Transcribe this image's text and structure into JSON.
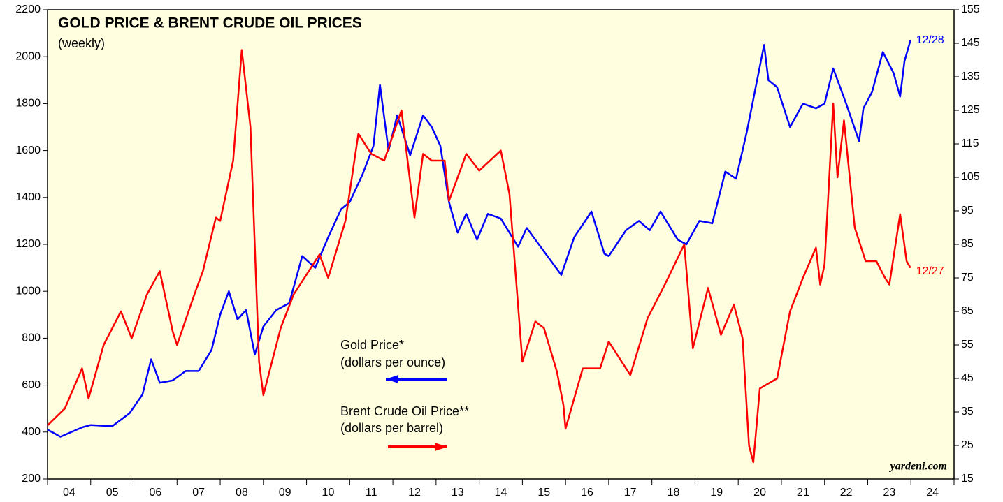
{
  "chart_data": {
    "type": "line",
    "title": "GOLD PRICE & BRENT CRUDE OIL PRICES",
    "subtitle": "(weekly)",
    "source": "yardeni.com",
    "xlim": [
      2004,
      2025
    ],
    "xticks": [
      {
        "value": 2004.5,
        "label": "04"
      },
      {
        "value": 2005.5,
        "label": "05"
      },
      {
        "value": 2006.5,
        "label": "06"
      },
      {
        "value": 2007.5,
        "label": "07"
      },
      {
        "value": 2008.5,
        "label": "08"
      },
      {
        "value": 2009.5,
        "label": "09"
      },
      {
        "value": 2010.5,
        "label": "10"
      },
      {
        "value": 2011.5,
        "label": "11"
      },
      {
        "value": 2012.5,
        "label": "12"
      },
      {
        "value": 2013.5,
        "label": "13"
      },
      {
        "value": 2014.5,
        "label": "14"
      },
      {
        "value": 2015.5,
        "label": "15"
      },
      {
        "value": 2016.5,
        "label": "16"
      },
      {
        "value": 2017.5,
        "label": "17"
      },
      {
        "value": 2018.5,
        "label": "18"
      },
      {
        "value": 2019.5,
        "label": "19"
      },
      {
        "value": 2020.5,
        "label": "20"
      },
      {
        "value": 2021.5,
        "label": "21"
      },
      {
        "value": 2022.5,
        "label": "22"
      },
      {
        "value": 2023.5,
        "label": "23"
      },
      {
        "value": 2024.5,
        "label": "24"
      }
    ],
    "xminor": [
      2004,
      2005,
      2006,
      2007,
      2008,
      2009,
      2010,
      2011,
      2012,
      2013,
      2014,
      2015,
      2016,
      2017,
      2018,
      2019,
      2020,
      2021,
      2022,
      2023,
      2024,
      2025
    ],
    "ylim": [
      200,
      2200
    ],
    "yticks": [
      200,
      400,
      600,
      800,
      1000,
      1200,
      1400,
      1600,
      1800,
      2000,
      2200
    ],
    "y2lim": [
      15,
      155
    ],
    "y2ticks": [
      15,
      25,
      35,
      45,
      55,
      65,
      75,
      85,
      95,
      105,
      115,
      125,
      135,
      145,
      155
    ],
    "series": [
      {
        "name": "Gold Price*",
        "unit": "(dollars per ounce)",
        "color": "#0000ff",
        "end_label": "12/28",
        "x": [
          2004.0,
          2004.3,
          2004.8,
          2005.0,
          2005.5,
          2005.9,
          2006.2,
          2006.4,
          2006.6,
          2006.9,
          2007.2,
          2007.5,
          2007.8,
          2008.0,
          2008.2,
          2008.4,
          2008.6,
          2008.8,
          2009.0,
          2009.3,
          2009.6,
          2009.9,
          2010.2,
          2010.5,
          2010.8,
          2011.0,
          2011.3,
          2011.55,
          2011.7,
          2011.9,
          2012.1,
          2012.4,
          2012.7,
          2012.9,
          2013.1,
          2013.3,
          2013.5,
          2013.7,
          2013.95,
          2014.2,
          2014.5,
          2014.9,
          2015.1,
          2015.5,
          2015.9,
          2016.2,
          2016.6,
          2016.9,
          2017.0,
          2017.4,
          2017.7,
          2017.95,
          2018.2,
          2018.6,
          2018.8,
          2019.1,
          2019.4,
          2019.7,
          2019.95,
          2020.2,
          2020.6,
          2020.7,
          2020.9,
          2021.2,
          2021.5,
          2021.8,
          2022.0,
          2022.2,
          2022.5,
          2022.8,
          2022.9,
          2023.1,
          2023.35,
          2023.6,
          2023.75,
          2023.85,
          2023.99
        ],
        "values": [
          410,
          380,
          420,
          430,
          425,
          480,
          560,
          710,
          610,
          620,
          660,
          660,
          750,
          900,
          1000,
          880,
          920,
          730,
          850,
          920,
          950,
          1150,
          1100,
          1230,
          1350,
          1380,
          1500,
          1620,
          1880,
          1600,
          1750,
          1580,
          1750,
          1700,
          1620,
          1380,
          1250,
          1330,
          1220,
          1330,
          1310,
          1190,
          1270,
          1170,
          1070,
          1230,
          1340,
          1160,
          1150,
          1260,
          1300,
          1260,
          1340,
          1220,
          1200,
          1300,
          1290,
          1510,
          1480,
          1680,
          2050,
          1900,
          1870,
          1700,
          1800,
          1780,
          1800,
          1950,
          1800,
          1640,
          1780,
          1850,
          2020,
          1930,
          1830,
          1980,
          2070
        ]
      },
      {
        "name": "Brent Crude Oil Price**",
        "unit": "(dollars per barrel)",
        "color": "#ff0000",
        "axis": "y2",
        "end_label": "12/27",
        "x": [
          2004.0,
          2004.4,
          2004.8,
          2004.95,
          2005.3,
          2005.7,
          2005.95,
          2006.3,
          2006.6,
          2006.9,
          2007.0,
          2007.4,
          2007.6,
          2007.9,
          2008.0,
          2008.3,
          2008.5,
          2008.7,
          2008.9,
          2009.0,
          2009.4,
          2009.7,
          2010.0,
          2010.3,
          2010.5,
          2010.9,
          2011.2,
          2011.5,
          2011.8,
          2012.2,
          2012.5,
          2012.7,
          2012.9,
          2013.2,
          2013.3,
          2013.7,
          2014.0,
          2014.5,
          2014.7,
          2015.0,
          2015.3,
          2015.5,
          2015.8,
          2015.95,
          2016.0,
          2016.4,
          2016.8,
          2017.0,
          2017.5,
          2017.9,
          2018.3,
          2018.75,
          2018.95,
          2019.3,
          2019.6,
          2019.9,
          2020.1,
          2020.25,
          2020.35,
          2020.5,
          2020.9,
          2021.2,
          2021.5,
          2021.8,
          2021.9,
          2022.0,
          2022.2,
          2022.3,
          2022.45,
          2022.7,
          2022.95,
          2023.2,
          2023.4,
          2023.5,
          2023.75,
          2023.9,
          2023.99
        ],
        "values": [
          31,
          36,
          48,
          39,
          55,
          65,
          57,
          70,
          77,
          59,
          55,
          70,
          77,
          93,
          92,
          110,
          143,
          120,
          50,
          40,
          60,
          70,
          76,
          82,
          75,
          92,
          118,
          112,
          110,
          125,
          93,
          112,
          110,
          110,
          98,
          112,
          107,
          113,
          100,
          50,
          62,
          60,
          47,
          37,
          30,
          48,
          48,
          56,
          46,
          63,
          73,
          85,
          54,
          72,
          58,
          67,
          57,
          25,
          20,
          42,
          45,
          65,
          75,
          84,
          73,
          79,
          127,
          105,
          122,
          90,
          80,
          80,
          75,
          73,
          94,
          80,
          78
        ]
      }
    ]
  }
}
